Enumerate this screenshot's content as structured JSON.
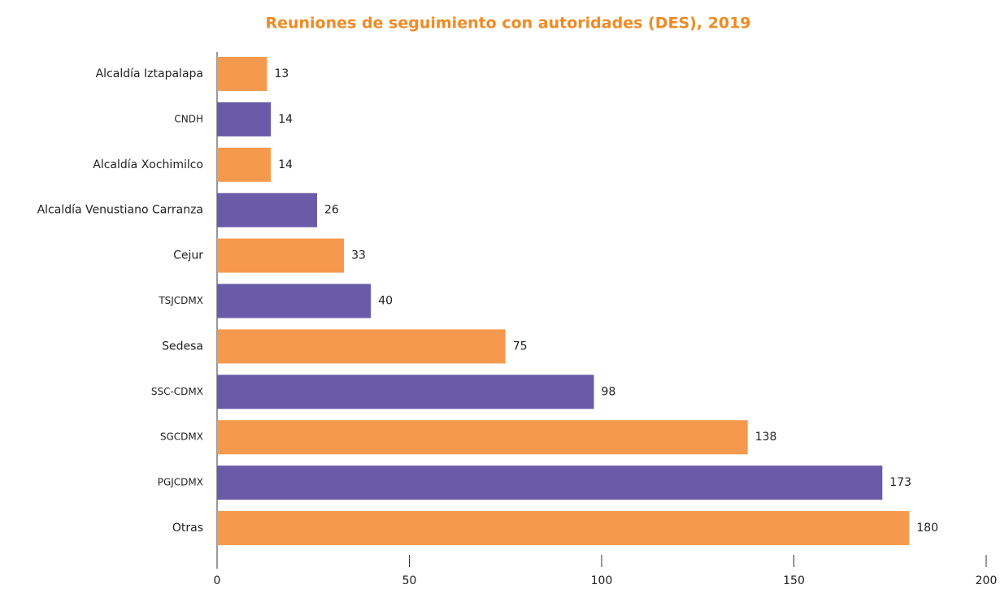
{
  "chart_data": {
    "type": "hbar",
    "title": "Reuniones de seguimiento con autoridades (DES), 2019",
    "categories": [
      "Alcaldía Iztapalapa",
      "CNDH",
      "Alcaldía Xochimilco",
      "Alcaldía Venustiano Carranza",
      "Cejur",
      "TSJCDMX",
      "Sedesa",
      "SSC-CDMX",
      "SGCDMX",
      "PGJCDMX",
      "Otras"
    ],
    "values": [
      13,
      14,
      14,
      26,
      33,
      40,
      75,
      98,
      138,
      173,
      180
    ],
    "colors": [
      "#f5994e",
      "#6a5ba8",
      "#f5994e",
      "#6a5ba8",
      "#f5994e",
      "#6a5ba8",
      "#f5994e",
      "#6a5ba8",
      "#f5994e",
      "#6a5ba8",
      "#f5994e"
    ],
    "xlim": [
      0,
      200
    ],
    "xticks": [
      0,
      50,
      100,
      150,
      200
    ]
  }
}
